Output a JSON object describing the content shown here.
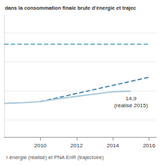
{
  "chart_data": {
    "type": "line",
    "title": "dans la consommation finale brute d'énergie et trajec",
    "caption": "r énergie (réalisé) et PNA EnR (trajectoire)",
    "x": [
      2008,
      2009,
      2010,
      2011,
      2012,
      2013,
      2014,
      2015,
      2016
    ],
    "series": [
      {
        "color": "#a9c8d9",
        "line_style": "solid",
        "values": [
          12.8,
          12.9,
          13.1,
          13.6,
          14.0,
          14.4,
          14.8,
          14.9,
          null
        ]
      },
      {
        "color": "#3b7ea8",
        "line_style": "dashed",
        "values": [
          null,
          null,
          13.1,
          13.8,
          14.5,
          15.2,
          15.9,
          16.6,
          17.3
        ]
      },
      {
        "color": "#6aaac8",
        "line_style": "dashed",
        "values": [
          23,
          23,
          23,
          23,
          23,
          23,
          23,
          23,
          23
        ]
      }
    ],
    "annotations": [
      {
        "x": 2015,
        "y": 14.9,
        "lines": [
          "14,9",
          "(réalisé 2015)"
        ]
      }
    ],
    "xlim": [
      2008,
      2016.4
    ],
    "xticks": [
      2010,
      2012,
      2014,
      2016
    ],
    "ylim": [
      7,
      28
    ],
    "yticks": [
      10,
      15,
      20,
      25
    ],
    "grid": true,
    "tick_labels": "x"
  }
}
